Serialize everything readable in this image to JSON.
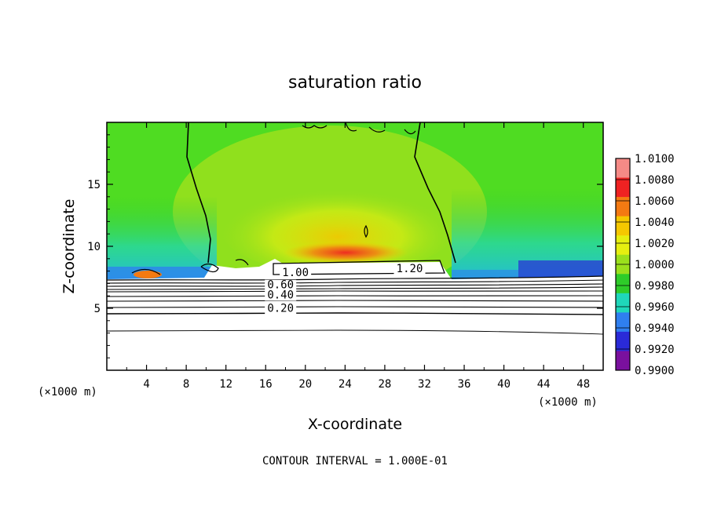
{
  "chart_data": {
    "type": "heatmap",
    "title": "saturation ratio",
    "xlabel": "X-coordinate",
    "ylabel": "Z-coordinate",
    "x_unit": "(×1000 m)",
    "y_unit": "(×1000 m)",
    "xlim": [
      0,
      50
    ],
    "ylim": [
      0,
      20
    ],
    "x_ticks": [
      4,
      8,
      12,
      16,
      20,
      24,
      28,
      32,
      36,
      40,
      44,
      48
    ],
    "y_ticks": [
      5,
      10,
      15
    ],
    "colorbar": {
      "levels": [
        "1.0100",
        "1.0080",
        "1.0060",
        "1.0040",
        "1.0020",
        "1.0000",
        "0.9980",
        "0.9960",
        "0.9940",
        "0.9920",
        "0.9900"
      ],
      "colors": [
        "#f58a86",
        "#ef2222",
        "#f47a12",
        "#f5c800",
        "#e6ef10",
        "#9be01c",
        "#2ecc29",
        "#1fd7ba",
        "#2f7ff0",
        "#2a2ad8",
        "#7a109e"
      ]
    },
    "contour_labels": [
      {
        "text": "1.00",
        "x": 19.0,
        "y": 7.6
      },
      {
        "text": "1.20",
        "x": 30.5,
        "y": 7.9
      },
      {
        "text": "0.60",
        "x": 17.5,
        "y": 6.6
      },
      {
        "text": "0.40",
        "x": 17.5,
        "y": 5.8
      },
      {
        "text": "0.20",
        "x": 17.5,
        "y": 4.7
      }
    ],
    "contour_interval_label": "CONTOUR INTERVAL = 1.000E-01"
  }
}
